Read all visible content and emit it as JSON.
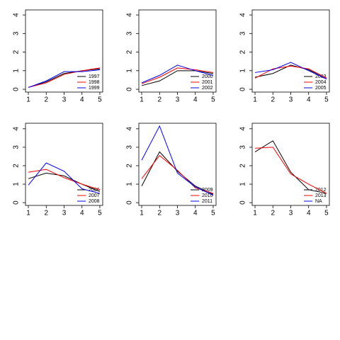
{
  "chart_data": [
    {
      "type": "line",
      "x": [
        1,
        2,
        3,
        4,
        5
      ],
      "xlim": [
        0.84,
        5.16
      ],
      "ylim": [
        -0.15,
        4.27
      ],
      "xticks": [
        1,
        2,
        3,
        4,
        5
      ],
      "yticks": [
        0,
        1,
        2,
        3,
        4
      ],
      "series": [
        {
          "name": "1997",
          "color": "#000000",
          "values": [
            0.1,
            0.4,
            0.85,
            1.0,
            1.1
          ]
        },
        {
          "name": "1998",
          "color": "#ff0000",
          "values": [
            0.1,
            0.35,
            0.8,
            1.0,
            1.15
          ]
        },
        {
          "name": "1999",
          "color": "#0000ff",
          "values": [
            0.1,
            0.45,
            0.95,
            0.95,
            1.05
          ]
        }
      ]
    },
    {
      "type": "line",
      "x": [
        1,
        2,
        3,
        4,
        5
      ],
      "xlim": [
        0.84,
        5.16
      ],
      "ylim": [
        -0.15,
        4.27
      ],
      "xticks": [
        1,
        2,
        3,
        4,
        5
      ],
      "yticks": [
        0,
        1,
        2,
        3,
        4
      ],
      "series": [
        {
          "name": "2000",
          "color": "#000000",
          "values": [
            0.2,
            0.45,
            1.0,
            1.0,
            0.85
          ]
        },
        {
          "name": "2001",
          "color": "#ff0000",
          "values": [
            0.3,
            0.65,
            1.15,
            1.05,
            0.9
          ]
        },
        {
          "name": "2002",
          "color": "#0000ff",
          "values": [
            0.35,
            0.75,
            1.3,
            1.0,
            0.75
          ]
        }
      ]
    },
    {
      "type": "line",
      "x": [
        1,
        2,
        3,
        4,
        5
      ],
      "xlim": [
        0.84,
        5.16
      ],
      "ylim": [
        -0.15,
        4.27
      ],
      "xticks": [
        1,
        2,
        3,
        4,
        5
      ],
      "yticks": [
        0,
        1,
        2,
        3,
        4
      ],
      "series": [
        {
          "name": "2003",
          "color": "#000000",
          "values": [
            0.65,
            0.85,
            1.3,
            1.05,
            0.6
          ]
        },
        {
          "name": "2004",
          "color": "#ff0000",
          "values": [
            0.6,
            1.1,
            1.25,
            1.1,
            0.6
          ]
        },
        {
          "name": "2005",
          "color": "#0000ff",
          "values": [
            0.9,
            1.05,
            1.45,
            1.0,
            0.55
          ]
        }
      ]
    },
    {
      "type": "line",
      "x": [
        1,
        2,
        3,
        4,
        5
      ],
      "xlim": [
        0.84,
        5.16
      ],
      "ylim": [
        -0.15,
        4.3
      ],
      "xticks": [
        1,
        2,
        3,
        4,
        5
      ],
      "yticks": [
        0,
        1,
        2,
        3,
        4
      ],
      "series": [
        {
          "name": "2006",
          "color": "#000000",
          "values": [
            1.3,
            1.6,
            1.45,
            1.0,
            0.6
          ]
        },
        {
          "name": "2007",
          "color": "#ff0000",
          "values": [
            1.65,
            1.8,
            1.35,
            1.0,
            0.7
          ]
        },
        {
          "name": "2008",
          "color": "#0000ff",
          "values": [
            0.95,
            2.15,
            1.7,
            0.75,
            0.5
          ]
        }
      ]
    },
    {
      "type": "line",
      "x": [
        1,
        2,
        3,
        4,
        5
      ],
      "xlim": [
        0.84,
        5.16
      ],
      "ylim": [
        -0.15,
        4.3
      ],
      "xticks": [
        1,
        2,
        3,
        4,
        5
      ],
      "yticks": [
        0,
        1,
        2,
        3,
        4
      ],
      "series": [
        {
          "name": "2009",
          "color": "#000000",
          "values": [
            0.9,
            2.75,
            1.7,
            0.9,
            0.45
          ]
        },
        {
          "name": "2010",
          "color": "#ff0000",
          "values": [
            1.3,
            2.55,
            1.75,
            0.8,
            0.5
          ]
        },
        {
          "name": "2011",
          "color": "#0000ff",
          "values": [
            2.3,
            4.15,
            1.6,
            0.85,
            0.4
          ]
        }
      ]
    },
    {
      "type": "line",
      "x": [
        1,
        2,
        3,
        4,
        5
      ],
      "xlim": [
        0.84,
        5.16
      ],
      "ylim": [
        -0.15,
        4.3
      ],
      "xticks": [
        1,
        2,
        3,
        4,
        5
      ],
      "yticks": [
        0,
        1,
        2,
        3,
        4
      ],
      "series": [
        {
          "name": "2012",
          "color": "#000000",
          "values": [
            2.75,
            3.35,
            1.65,
            0.7,
            0.5
          ]
        },
        {
          "name": "2013",
          "color": "#ff0000",
          "values": [
            2.95,
            3.0,
            1.55,
            1.0,
            0.5
          ]
        },
        {
          "name": "NA",
          "color": "#0000ff",
          "values": [
            null,
            null,
            null,
            null,
            null
          ]
        }
      ]
    }
  ]
}
